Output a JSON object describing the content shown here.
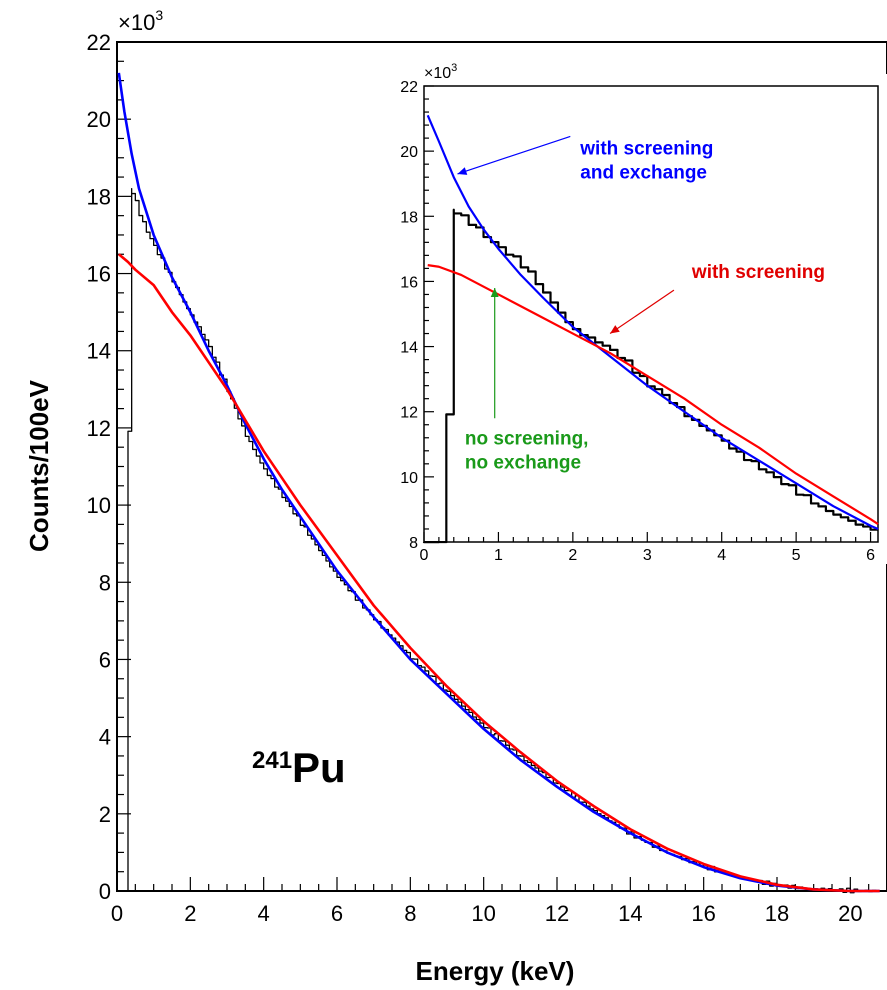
{
  "chart_data": [
    {
      "id": "main",
      "type": "line",
      "xlabel": "Energy (keV)",
      "ylabel": "Counts/100eV",
      "y_multiplier": "×10",
      "y_multiplier_exp": "3",
      "xlim": [
        0,
        21
      ],
      "ylim": [
        0,
        22
      ],
      "xticks": [
        0,
        2,
        4,
        6,
        8,
        10,
        12,
        14,
        16,
        18,
        20
      ],
      "yticks": [
        0,
        2,
        4,
        6,
        8,
        10,
        12,
        14,
        16,
        18,
        20,
        22
      ],
      "grid": false,
      "isotope_label": {
        "mass": "241",
        "element": "Pu"
      },
      "series": [
        {
          "kind": "histogram",
          "color": "#000000",
          "points": [
            [
              0.0,
              0
            ],
            [
              0.3,
              0
            ],
            [
              0.3,
              11.9
            ],
            [
              0.4,
              11.9
            ],
            [
              0.4,
              18.2
            ],
            [
              0.5,
              18.0
            ],
            [
              0.7,
              17.4
            ],
            [
              1.0,
              16.8
            ],
            [
              1.5,
              15.9
            ],
            [
              2.0,
              15.0
            ],
            [
              2.5,
              14.2
            ],
            [
              3.0,
              13.1
            ],
            [
              3.5,
              11.9
            ],
            [
              4.0,
              11.0
            ],
            [
              4.5,
              10.3
            ],
            [
              5.0,
              9.6
            ],
            [
              6.0,
              8.2
            ],
            [
              7.0,
              7.1
            ],
            [
              8.0,
              6.1
            ],
            [
              9.0,
              5.2
            ],
            [
              10.0,
              4.3
            ],
            [
              11.0,
              3.5
            ],
            [
              12.0,
              2.8
            ],
            [
              13.0,
              2.1
            ],
            [
              14.0,
              1.5
            ],
            [
              15.0,
              1.0
            ],
            [
              16.0,
              0.65
            ],
            [
              17.0,
              0.35
            ],
            [
              18.0,
              0.15
            ],
            [
              19.0,
              0.05
            ],
            [
              20.0,
              0.01
            ],
            [
              20.8,
              0.0
            ]
          ]
        },
        {
          "name": "with screening and exchange",
          "kind": "line",
          "color": "#0000ff",
          "points": [
            [
              0.05,
              21.2
            ],
            [
              0.2,
              20.2
            ],
            [
              0.4,
              19.1
            ],
            [
              0.6,
              18.2
            ],
            [
              0.8,
              17.6
            ],
            [
              1.0,
              17.0
            ],
            [
              1.5,
              15.9
            ],
            [
              2.0,
              15.0
            ],
            [
              2.5,
              14.0
            ],
            [
              3.0,
              13.1
            ],
            [
              3.5,
              12.1
            ],
            [
              4.0,
              11.2
            ],
            [
              4.5,
              10.4
            ],
            [
              5.0,
              9.7
            ],
            [
              6.0,
              8.3
            ],
            [
              7.0,
              7.1
            ],
            [
              8.0,
              6.0
            ],
            [
              9.0,
              5.1
            ],
            [
              10.0,
              4.2
            ],
            [
              11.0,
              3.4
            ],
            [
              12.0,
              2.7
            ],
            [
              13.0,
              2.05
            ],
            [
              14.0,
              1.5
            ],
            [
              15.0,
              1.0
            ],
            [
              16.0,
              0.62
            ],
            [
              17.0,
              0.33
            ],
            [
              18.0,
              0.14
            ],
            [
              19.0,
              0.04
            ],
            [
              20.0,
              0.0
            ],
            [
              20.8,
              0.0
            ]
          ]
        },
        {
          "name": "with screening",
          "kind": "line",
          "color": "#ff0000",
          "points": [
            [
              0.05,
              16.5
            ],
            [
              0.3,
              16.3
            ],
            [
              0.5,
              16.1
            ],
            [
              1.0,
              15.7
            ],
            [
              1.5,
              15.0
            ],
            [
              2.0,
              14.4
            ],
            [
              2.5,
              13.7
            ],
            [
              3.0,
              13.0
            ],
            [
              3.5,
              12.2
            ],
            [
              4.0,
              11.4
            ],
            [
              4.5,
              10.7
            ],
            [
              5.0,
              10.0
            ],
            [
              6.0,
              8.7
            ],
            [
              7.0,
              7.4
            ],
            [
              8.0,
              6.3
            ],
            [
              9.0,
              5.3
            ],
            [
              10.0,
              4.4
            ],
            [
              11.0,
              3.6
            ],
            [
              12.0,
              2.85
            ],
            [
              13.0,
              2.2
            ],
            [
              14.0,
              1.6
            ],
            [
              15.0,
              1.1
            ],
            [
              16.0,
              0.7
            ],
            [
              17.0,
              0.38
            ],
            [
              18.0,
              0.16
            ],
            [
              19.0,
              0.04
            ],
            [
              20.0,
              0.0
            ],
            [
              20.8,
              0.0
            ]
          ]
        }
      ]
    },
    {
      "id": "inset",
      "type": "line",
      "y_multiplier": "×10",
      "y_multiplier_exp": "3",
      "xlim": [
        0,
        6.1
      ],
      "ylim": [
        8,
        22
      ],
      "xticks": [
        0,
        1,
        2,
        3,
        4,
        5,
        6
      ],
      "yticks": [
        8,
        10,
        12,
        14,
        16,
        18,
        20,
        22
      ],
      "grid": false,
      "series": [
        {
          "kind": "histogram",
          "color": "#000000",
          "points": [
            [
              0.0,
              8
            ],
            [
              0.3,
              8
            ],
            [
              0.3,
              11.9
            ],
            [
              0.4,
              11.9
            ],
            [
              0.4,
              18.2
            ],
            [
              0.6,
              17.9
            ],
            [
              0.8,
              17.5
            ],
            [
              1.0,
              17.1
            ],
            [
              1.2,
              16.8
            ],
            [
              1.4,
              16.4
            ],
            [
              1.6,
              15.8
            ],
            [
              1.8,
              15.2
            ],
            [
              2.0,
              14.6
            ],
            [
              2.2,
              14.3
            ],
            [
              2.4,
              14.1
            ],
            [
              2.6,
              13.8
            ],
            [
              2.8,
              13.4
            ],
            [
              3.0,
              12.9
            ],
            [
              3.2,
              12.6
            ],
            [
              3.4,
              12.2
            ],
            [
              3.6,
              11.8
            ],
            [
              3.8,
              11.5
            ],
            [
              4.0,
              11.2
            ],
            [
              4.2,
              10.8
            ],
            [
              4.4,
              10.5
            ],
            [
              4.6,
              10.2
            ],
            [
              4.8,
              9.9
            ],
            [
              5.0,
              9.6
            ],
            [
              5.2,
              9.3
            ],
            [
              5.4,
              9.0
            ],
            [
              5.6,
              8.8
            ],
            [
              5.8,
              8.6
            ],
            [
              6.0,
              8.4
            ],
            [
              6.1,
              8.4
            ]
          ]
        },
        {
          "name": "with screening and exchange",
          "kind": "line",
          "color": "#0000ff",
          "points": [
            [
              0.05,
              21.1
            ],
            [
              0.2,
              20.3
            ],
            [
              0.4,
              19.2
            ],
            [
              0.6,
              18.3
            ],
            [
              0.8,
              17.6
            ],
            [
              1.0,
              17.0
            ],
            [
              1.3,
              16.2
            ],
            [
              1.6,
              15.5
            ],
            [
              2.0,
              14.6
            ],
            [
              2.5,
              13.7
            ],
            [
              3.0,
              12.8
            ],
            [
              3.5,
              12.0
            ],
            [
              4.0,
              11.2
            ],
            [
              4.5,
              10.5
            ],
            [
              5.0,
              9.8
            ],
            [
              5.5,
              9.1
            ],
            [
              6.0,
              8.5
            ],
            [
              6.1,
              8.4
            ]
          ]
        },
        {
          "name": "with screening",
          "kind": "line",
          "color": "#ff0000",
          "points": [
            [
              0.05,
              16.5
            ],
            [
              0.2,
              16.45
            ],
            [
              0.5,
              16.2
            ],
            [
              1.0,
              15.6
            ],
            [
              1.5,
              15.0
            ],
            [
              2.0,
              14.4
            ],
            [
              2.5,
              13.8
            ],
            [
              3.0,
              13.1
            ],
            [
              3.5,
              12.4
            ],
            [
              4.0,
              11.6
            ],
            [
              4.5,
              10.9
            ],
            [
              5.0,
              10.1
            ],
            [
              5.5,
              9.4
            ],
            [
              6.0,
              8.7
            ],
            [
              6.1,
              8.55
            ]
          ]
        }
      ],
      "annotations": [
        {
          "lines": [
            "with screening",
            "and exchange"
          ],
          "color": "#0000ff",
          "x": 2.1,
          "y": 19.9,
          "arrow_to": [
            0.45,
            19.3
          ]
        },
        {
          "lines": [
            "with screening"
          ],
          "color": "#e00000",
          "x": 3.6,
          "y": 16.1,
          "arrow_to": [
            2.5,
            14.4
          ]
        },
        {
          "lines": [
            "no screening,",
            "no exchange"
          ],
          "color": "#1a9a1a",
          "x": 0.55,
          "y": 11.0,
          "arrow_to": [
            0.95,
            15.8
          ]
        }
      ]
    }
  ]
}
